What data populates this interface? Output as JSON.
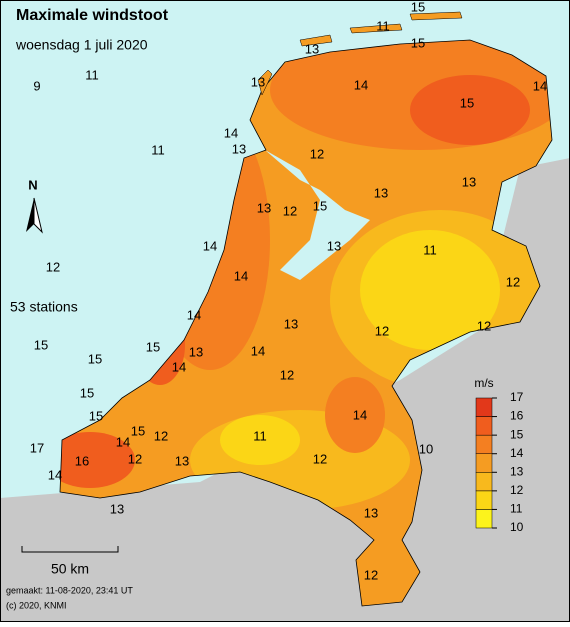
{
  "header": {
    "title": "Maximale windstoot",
    "subtitle": "woensdag 1 juli 2020"
  },
  "north_label": "N",
  "stations": {
    "count_label": "53 stations",
    "values": [
      15,
      11,
      15,
      13,
      13,
      14,
      15,
      14,
      9,
      11,
      14,
      13,
      11,
      12,
      13,
      13,
      13,
      12,
      15,
      14,
      13,
      11,
      12,
      14,
      12,
      14,
      13,
      12,
      12,
      15,
      15,
      13,
      14,
      15,
      14,
      12,
      15,
      15,
      14,
      15,
      14,
      12,
      11,
      10,
      17,
      16,
      12,
      13,
      12,
      14,
      13,
      13,
      12
    ]
  },
  "legend": {
    "unit": "m/s",
    "ticks": [
      10,
      11,
      12,
      13,
      14,
      15,
      16,
      17
    ],
    "colors": [
      "#fcf31c",
      "#fbd616",
      "#f8b91d",
      "#f59c22",
      "#f47f21",
      "#f05d1e",
      "#e2381a"
    ]
  },
  "scale_label": "50 km",
  "footer": {
    "made": "gemaakt: 11-08-2020, 23:41 UT",
    "copyright": "(c) 2020, KNMI"
  }
}
